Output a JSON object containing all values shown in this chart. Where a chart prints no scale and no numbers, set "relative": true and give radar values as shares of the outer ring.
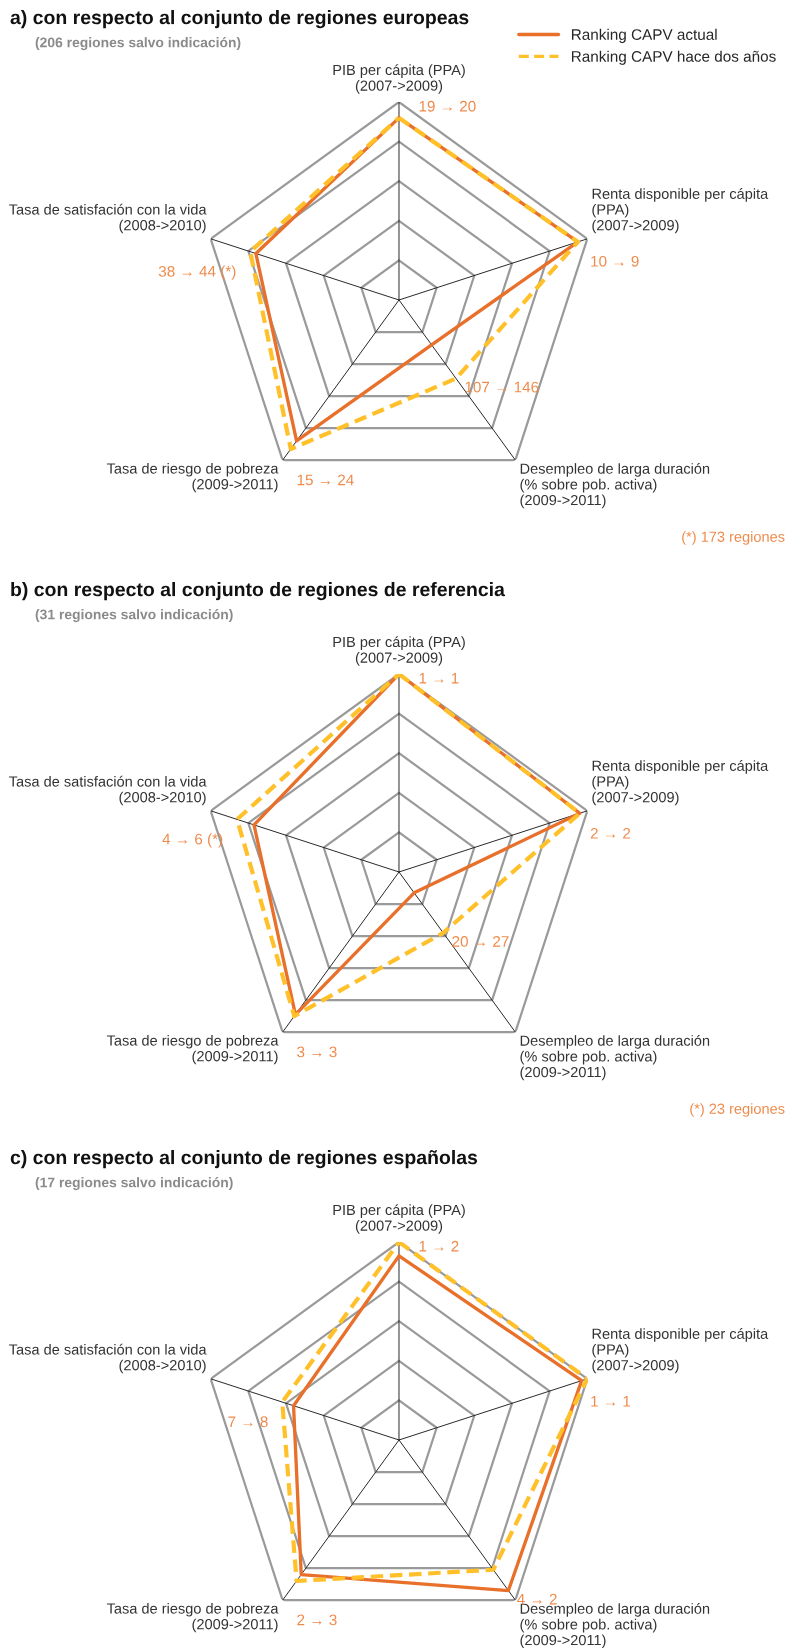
{
  "chart_data": [
    {
      "type": "radar",
      "relative": true,
      "title": "a) con respecto al conjunto de regiones europeas",
      "subtitle": "(206 regiones salvo indicación)",
      "categories": [
        "PIB per cápita (PPA)\n(2007->2009)",
        "Renta disponible per cápita\n(PPA)\n(2007->2009)",
        "Desempleo de larga duración\n(% sobre pob. activa)\n(2009->2011)",
        "Tasa de riesgo de pobreza\n(2009->2011)",
        "Tasa de satisfación con la vida\n(2008->2010)"
      ],
      "series": [
        {
          "name": "Ranking CAPV actual",
          "color": "#e8702a",
          "line_style": "solid",
          "values": [
            0.92,
            0.95,
            0.28,
            0.88,
            0.76
          ]
        },
        {
          "name": "Ranking CAPV hace dos años",
          "color": "#ffc02a",
          "line_style": "dashed",
          "values": [
            0.92,
            0.95,
            0.49,
            0.93,
            0.79
          ]
        }
      ],
      "legend": "top right",
      "annotations": [
        {
          "text": "19 → 20",
          "x": "PIB per cápita (PPA)\n(2007->2009)"
        },
        {
          "text": "10 → 9",
          "x": "Renta disponible per cápita\n(PPA)\n(2007->2009)"
        },
        {
          "text": "107 → 146",
          "x": "Desempleo de larga duración\n(% sobre pob. activa)\n(2009->2011)"
        },
        {
          "text": "15 → 24",
          "x": "Tasa de riesgo de pobreza\n(2009->2011)"
        },
        {
          "text": "38 → 44 (*)",
          "x": "Tasa de satisfación con la vida\n(2008->2010)"
        },
        "(*) 173 regiones"
      ]
    },
    {
      "type": "radar",
      "relative": true,
      "title": "b) con respecto al conjunto de regiones de referencia",
      "subtitle": "(31 regiones salvo indicación)",
      "categories": [
        "PIB per cápita (PPA)\n(2007->2009)",
        "Renta disponible per cápita\n(PPA)\n(2007->2009)",
        "Desempleo de larga duración\n(% sobre pob. activa)\n(2009->2011)",
        "Tasa de riesgo de pobreza\n(2009->2011)",
        "Tasa de satisfación con la vida\n(2008->2010)"
      ],
      "series": [
        {
          "color": "#e8702a",
          "line_style": "solid",
          "values": [
            1.0,
            0.96,
            0.13,
            0.89,
            0.77
          ]
        },
        {
          "color": "#ffc02a",
          "line_style": "dashed",
          "values": [
            1.0,
            0.96,
            0.38,
            0.9,
            0.86
          ]
        }
      ],
      "annotations": [
        {
          "text": "1 → 1",
          "x": "PIB per cápita (PPA)\n(2007->2009)"
        },
        {
          "text": "2 → 2",
          "x": "Renta disponible per cápita\n(PPA)\n(2007->2009)"
        },
        {
          "text": "20 → 27",
          "x": "Desempleo de larga duración\n(% sobre pob. activa)\n(2009->2011)"
        },
        {
          "text": "3 → 3",
          "x": "Tasa de riesgo de pobreza\n(2009->2011)"
        },
        {
          "text": "4 → 6 (*)",
          "x": "Tasa de satisfación con la vida\n(2008->2010)"
        },
        "(*) 23 regiones"
      ]
    },
    {
      "type": "radar",
      "relative": true,
      "title": "c) con respecto al conjunto de regiones españolas",
      "subtitle": "(17 regiones salvo indicación)",
      "categories": [
        "PIB per cápita (PPA)\n(2007->2009)",
        "Renta disponible per cápita\n(PPA)\n(2007->2009)",
        "Desempleo de larga duración\n(% sobre pob. activa)\n(2009->2011)",
        "Tasa de riesgo de pobreza\n(2009->2011)",
        "Tasa de satisfación con la vida\n(2008->2010)"
      ],
      "series": [
        {
          "color": "#e8702a",
          "line_style": "solid",
          "values": [
            0.93,
            0.97,
            0.94,
            0.84,
            0.56
          ]
        },
        {
          "color": "#ffc02a",
          "line_style": "dashed",
          "values": [
            1.0,
            1.0,
            0.81,
            0.88,
            0.62
          ]
        }
      ],
      "annotations": [
        {
          "text": "1 → 2",
          "x": "PIB per cápita (PPA)\n(2007->2009)"
        },
        {
          "text": "1 → 1",
          "x": "Renta disponible per cápita\n(PPA)\n(2007->2009)"
        },
        {
          "text": "4 → 2",
          "x": "Desempleo de larga duración\n(% sobre pob. activa)\n(2009->2011)"
        },
        {
          "text": "2 → 3",
          "x": "Tasa de riesgo de pobreza\n(2009->2011)"
        },
        {
          "text": "7 → 8",
          "x": "Tasa de satisfación con la vida\n(2008->2010)"
        }
      ]
    }
  ]
}
